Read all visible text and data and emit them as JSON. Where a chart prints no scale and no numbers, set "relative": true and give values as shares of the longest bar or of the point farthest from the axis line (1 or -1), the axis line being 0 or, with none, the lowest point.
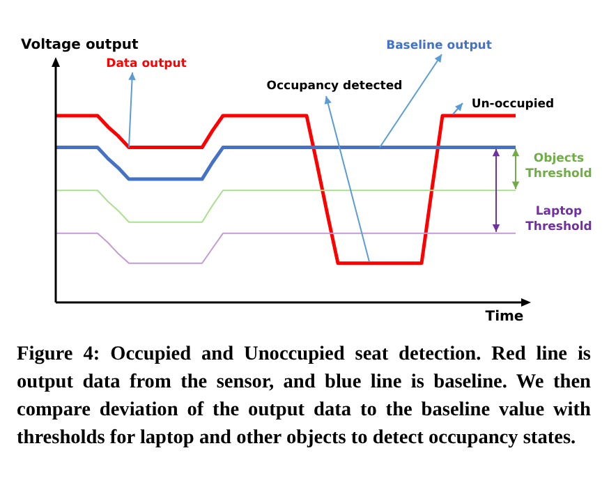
{
  "chart_data": {
    "type": "line",
    "relative": true,
    "xlabel": "Time",
    "ylabel": "Voltage output",
    "line_style": "solid",
    "marker": "none",
    "categories": [
      null,
      null,
      null,
      null,
      null,
      null,
      null,
      null,
      null,
      null,
      null,
      null,
      null,
      null,
      null,
      null,
      null,
      null,
      null,
      null,
      null,
      null,
      null,
      null,
      null,
      null,
      null,
      null,
      null,
      null,
      null,
      null,
      null,
      null,
      null,
      null,
      null,
      null,
      null,
      null,
      null,
      null,
      null,
      null,
      null
    ],
    "series": [
      {
        "name": "Data output",
        "color": "#ff0000",
        "values": [
          1,
          1,
          1,
          1,
          1,
          0.94,
          0.89,
          0.83,
          0.83,
          0.83,
          0.83,
          0.83,
          0.83,
          0.83,
          0.83,
          0.92,
          1,
          1,
          1,
          1,
          1,
          1,
          1,
          1,
          1,
          0.74,
          0.47,
          0.21,
          0.21,
          0.21,
          0.21,
          0.21,
          0.21,
          0.21,
          0.21,
          0.21,
          0.61,
          1,
          1,
          1,
          1,
          1,
          1,
          1,
          1
        ]
      },
      {
        "name": "Baseline output",
        "color": "#4472c4",
        "values": [
          0.83,
          0.83,
          0.83,
          0.83,
          0.83,
          0.77,
          0.72,
          0.66,
          0.66,
          0.66,
          0.66,
          0.66,
          0.66,
          0.66,
          0.66,
          0.75,
          0.83,
          0.83,
          0.83,
          0.83,
          0.83,
          0.83,
          0.83,
          0.83,
          0.83,
          0.83,
          0.83,
          0.83,
          0.83,
          0.83,
          0.83,
          0.83,
          0.83,
          0.83,
          0.83,
          0.83,
          0.83,
          0.83,
          0.83,
          0.83,
          0.83,
          0.83,
          0.83,
          0.83,
          0.83
        ]
      },
      {
        "color": "#a9e08f",
        "values": [
          0.6,
          0.6,
          0.6,
          0.6,
          0.6,
          0.54,
          0.49,
          0.43,
          0.43,
          0.43,
          0.43,
          0.43,
          0.43,
          0.43,
          0.43,
          0.52,
          0.6,
          0.6,
          0.6,
          0.6,
          0.6,
          0.6,
          0.6,
          0.6,
          0.6,
          0.6,
          0.6,
          0.6,
          0.6,
          0.6,
          0.6,
          0.6,
          0.6,
          0.6,
          0.6,
          0.6,
          0.6,
          0.6,
          0.6,
          0.6,
          0.6,
          0.6,
          0.6,
          0.6,
          0.6
        ]
      },
      {
        "color": "#c39bd3",
        "values": [
          0.37,
          0.37,
          0.37,
          0.37,
          0.37,
          0.32,
          0.26,
          0.21,
          0.21,
          0.21,
          0.21,
          0.21,
          0.21,
          0.21,
          0.21,
          0.29,
          0.37,
          0.37,
          0.37,
          0.37,
          0.37,
          0.37,
          0.37,
          0.37,
          0.37,
          0.37,
          0.37,
          0.37,
          0.37,
          0.37,
          0.37,
          0.37,
          0.37,
          0.37,
          0.37,
          0.37,
          0.37,
          0.37,
          0.37,
          0.37,
          0.37,
          0.37,
          0.37,
          0.37,
          0.37
        ]
      }
    ],
    "annotations": [
      "Occupancy detected",
      "Un-occupied",
      "Objects Threshold",
      "Laptop Threshold",
      "Figure 4: Occupied and Unoccupied seat detection. Red line is output data from the sensor, and blue line is baseline. We then compare deviation of the output data to the baseline value with thresholds for laptop and other objects to detect occupancy states."
    ]
  }
}
